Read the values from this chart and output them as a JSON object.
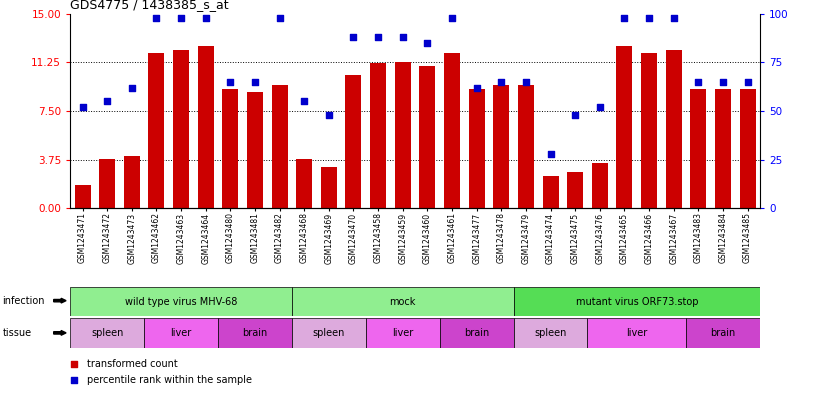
{
  "title": "GDS4775 / 1438385_s_at",
  "samples": [
    "GSM1243471",
    "GSM1243472",
    "GSM1243473",
    "GSM1243462",
    "GSM1243463",
    "GSM1243464",
    "GSM1243480",
    "GSM1243481",
    "GSM1243482",
    "GSM1243468",
    "GSM1243469",
    "GSM1243470",
    "GSM1243458",
    "GSM1243459",
    "GSM1243460",
    "GSM1243461",
    "GSM1243477",
    "GSM1243478",
    "GSM1243479",
    "GSM1243474",
    "GSM1243475",
    "GSM1243476",
    "GSM1243465",
    "GSM1243466",
    "GSM1243467",
    "GSM1243483",
    "GSM1243484",
    "GSM1243485"
  ],
  "bar_values": [
    1.8,
    3.8,
    4.0,
    12.0,
    12.2,
    12.5,
    9.2,
    9.0,
    9.5,
    3.8,
    3.2,
    10.3,
    11.2,
    11.3,
    11.0,
    12.0,
    9.2,
    9.5,
    9.5,
    2.5,
    2.8,
    3.5,
    12.5,
    12.0,
    12.2,
    9.2,
    9.2,
    9.2
  ],
  "dot_values": [
    52,
    55,
    62,
    98,
    98,
    98,
    65,
    65,
    98,
    55,
    48,
    88,
    88,
    88,
    85,
    98,
    62,
    65,
    65,
    28,
    48,
    52,
    98,
    98,
    98,
    65,
    65,
    65
  ],
  "bar_color": "#cc0000",
  "dot_color": "#0000cc",
  "ylim_left": [
    0,
    15
  ],
  "ylim_right": [
    0,
    100
  ],
  "yticks_left": [
    0,
    3.75,
    7.5,
    11.25,
    15
  ],
  "yticks_right": [
    0,
    25,
    50,
    75,
    100
  ],
  "infection_groups": [
    {
      "label": "wild type virus MHV-68",
      "start": 0,
      "end": 9,
      "color": "#90ee90"
    },
    {
      "label": "mock",
      "start": 9,
      "end": 18,
      "color": "#90ee90"
    },
    {
      "label": "mutant virus ORF73.stop",
      "start": 18,
      "end": 28,
      "color": "#55dd55"
    }
  ],
  "tissue_groups": [
    {
      "label": "spleen",
      "start": 0,
      "end": 3,
      "color": "#ddaadd"
    },
    {
      "label": "liver",
      "start": 3,
      "end": 6,
      "color": "#ee66ee"
    },
    {
      "label": "brain",
      "start": 6,
      "end": 9,
      "color": "#cc44cc"
    },
    {
      "label": "spleen",
      "start": 9,
      "end": 12,
      "color": "#ddaadd"
    },
    {
      "label": "liver",
      "start": 12,
      "end": 15,
      "color": "#ee66ee"
    },
    {
      "label": "brain",
      "start": 15,
      "end": 18,
      "color": "#cc44cc"
    },
    {
      "label": "spleen",
      "start": 18,
      "end": 21,
      "color": "#ddaadd"
    },
    {
      "label": "liver",
      "start": 21,
      "end": 25,
      "color": "#ee66ee"
    },
    {
      "label": "brain",
      "start": 25,
      "end": 28,
      "color": "#cc44cc"
    }
  ],
  "legend_items": [
    {
      "label": "transformed count",
      "color": "#cc0000"
    },
    {
      "label": "percentile rank within the sample",
      "color": "#0000cc"
    }
  ],
  "infection_label": "infection",
  "tissue_label": "tissue",
  "xticklabel_bg": "#d0d0d0"
}
